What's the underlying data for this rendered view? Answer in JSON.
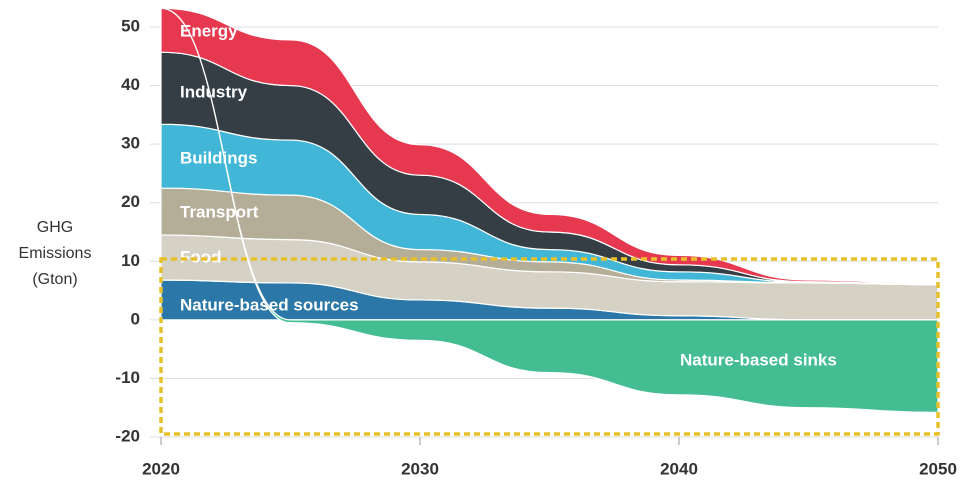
{
  "chart_data": {
    "type": "stacked_area",
    "y_label": [
      "GHG",
      "Emissions",
      "(Gton)"
    ],
    "x": [
      2020,
      2025,
      2030,
      2035,
      2040,
      2045,
      2050
    ],
    "xlim": [
      2020,
      2050
    ],
    "xticks": [
      2020,
      2030,
      2040,
      2050
    ],
    "ylim": [
      -20,
      50
    ],
    "yticks": [
      -20,
      -10,
      0,
      10,
      20,
      30,
      40,
      50
    ],
    "grid": true,
    "series": [
      {
        "name": "Nature-based sources",
        "color": "#2b78a8",
        "values": [
          6.8,
          6.3,
          3.4,
          2,
          0.7,
          0,
          0
        ]
      },
      {
        "name": "Food",
        "color": "#d5d2c5",
        "values": [
          7.7,
          7.4,
          6.5,
          6.2,
          5.8,
          6.3,
          6
        ]
      },
      {
        "name": "Transport",
        "color": "#b4ae99",
        "values": [
          8,
          7.6,
          2.1,
          1.7,
          0.3,
          0,
          0
        ]
      },
      {
        "name": "Buildings",
        "color": "#41b6d6",
        "values": [
          10.9,
          9.4,
          6,
          2.1,
          1.4,
          0.1,
          0
        ]
      },
      {
        "name": "Industry",
        "color": "#343e44",
        "values": [
          12.3,
          9.3,
          6.7,
          3,
          1.2,
          0.1,
          0
        ]
      },
      {
        "name": "Energy",
        "color": "#e63950",
        "values": [
          7.5,
          7.8,
          5.2,
          3,
          1.6,
          0.3,
          0.1
        ]
      },
      {
        "name": "Nature-based sinks",
        "color": "#45bd93",
        "values": [
          0,
          -0.5,
          -3.5,
          -9,
          -12.8,
          -15,
          -15.8
        ]
      }
    ]
  }
}
